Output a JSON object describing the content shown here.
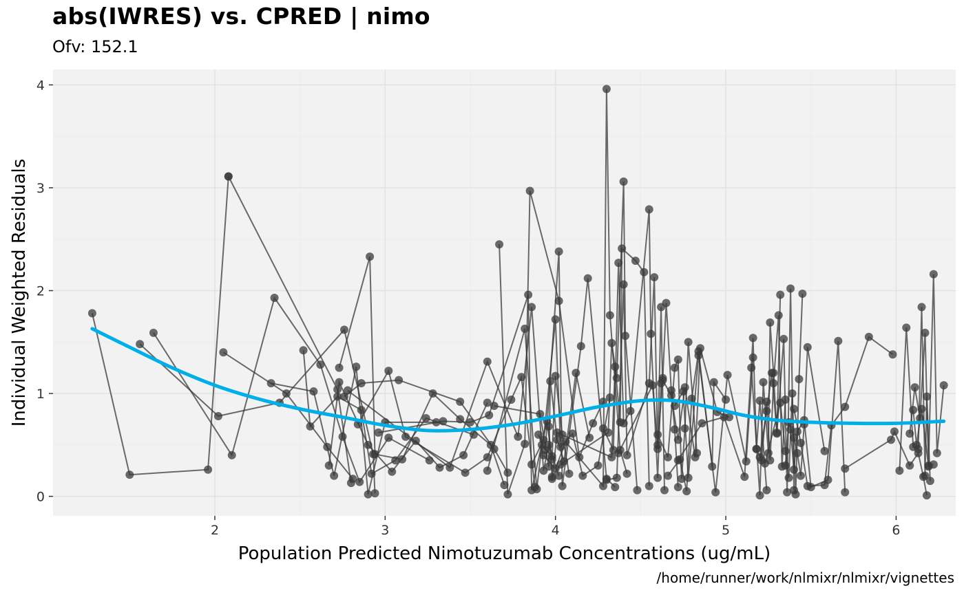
{
  "chart_data": {
    "type": "scatter",
    "title": "abs(IWRES) vs. CPRED | nimo",
    "subtitle": "Ofv: 152.1",
    "caption": "/home/runner/work/nlmixr/nlmixr/vignettes",
    "xlabel": "Population Predicted Nimotuzumab Concentrations (ug/mL)",
    "ylabel": "Individual Weighted Residuals",
    "xlim": [
      1.05,
      6.35
    ],
    "ylim": [
      -0.19,
      4.15
    ],
    "x_ticks": [
      2,
      3,
      4,
      5,
      6
    ],
    "y_ticks": [
      0,
      1,
      2,
      3,
      4
    ],
    "grid": true,
    "colors": {
      "panel": "#f2f2f2",
      "grid_major": "#e2e2e2",
      "grid_minor": "#ececec",
      "points": "#3a3a3a",
      "lines": "#3a3a3a",
      "smooth": "#00aee8"
    },
    "series": [
      {
        "x": [
          1.28,
          1.5,
          1.96,
          2.08
        ],
        "y": [
          1.78,
          0.21,
          0.26,
          3.11
        ]
      },
      {
        "x": [
          2.08,
          2.72,
          2.8
        ],
        "y": [
          3.11,
          1.04,
          0.13
        ]
      },
      {
        "x": [
          1.56,
          2.02,
          2.38,
          2.76,
          2.93,
          2.94
        ],
        "y": [
          1.48,
          0.78,
          0.91,
          1.62,
          0.41,
          0.03
        ]
      },
      {
        "x": [
          1.64,
          2.1,
          2.35,
          2.62,
          2.75,
          2.85,
          3.02,
          3.26
        ],
        "y": [
          1.59,
          0.4,
          1.93,
          1.28,
          0.58,
          0.14,
          0.57,
          0.35
        ]
      },
      {
        "x": [
          2.05,
          2.42,
          2.66,
          2.81
        ],
        "y": [
          1.4,
          1.0,
          0.48,
          0.17
        ]
      },
      {
        "x": [
          2.33,
          2.58,
          2.7,
          2.83,
          2.9,
          3.0,
          3.3
        ],
        "y": [
          1.1,
          1.02,
          0.2,
          1.26,
          0.02,
          0.72,
          0.72
        ]
      },
      {
        "x": [
          2.52,
          2.56,
          2.72,
          2.86,
          2.92,
          3.06,
          3.24,
          3.52
        ],
        "y": [
          1.42,
          0.68,
          0.97,
          0.84,
          0.22,
          0.35,
          0.76,
          0.6
        ]
      },
      {
        "x": [
          2.67,
          2.73,
          2.9,
          3.04,
          3.18,
          3.32,
          3.46,
          3.6
        ],
        "y": [
          0.3,
          1.11,
          0.5,
          0.24,
          0.54,
          0.28,
          0.4,
          0.91
        ]
      },
      {
        "x": [
          2.73,
          2.91,
          2.94,
          3.1,
          3.28,
          3.44,
          3.62,
          3.7
        ],
        "y": [
          1.25,
          2.33,
          0.41,
          0.36,
          1.0,
          0.75,
          0.5,
          0.11
        ]
      },
      {
        "x": [
          2.76,
          2.86,
          3.08,
          3.44,
          3.64,
          3.72
        ],
        "y": [
          0.97,
          1.1,
          1.13,
          0.92,
          0.46,
          0.23
        ]
      },
      {
        "x": [
          2.84,
          3.02,
          3.12,
          3.47,
          3.6,
          3.74,
          3.8,
          3.88
        ],
        "y": [
          0.7,
          1.22,
          0.58,
          0.23,
          0.38,
          0.94,
          1.16,
          0.09
        ]
      },
      {
        "x": [
          2.78,
          3.38,
          3.6,
          3.78,
          3.86,
          3.93,
          3.96,
          4.02
        ],
        "y": [
          1.03,
          0.28,
          1.31,
          0.58,
          1.84,
          0.25,
          0.5,
          0.2
        ]
      },
      {
        "x": [
          2.96,
          3.34,
          3.5,
          3.61,
          3.84,
          3.86,
          3.95,
          3.98
        ],
        "y": [
          0.62,
          0.73,
          0.72,
          0.79,
          1.96,
          0.06,
          0.73,
          0.36
        ]
      },
      {
        "x": [
          3.6,
          3.82,
          3.89,
          3.92,
          3.98,
          4.0,
          4.04,
          4.08
        ],
        "y": [
          0.25,
          1.63,
          0.07,
          0.5,
          0.39,
          1.17,
          0.6,
          0.22
        ]
      },
      {
        "x": [
          3.67,
          3.72,
          3.82,
          3.85,
          4.02,
          4.14,
          4.22,
          4.28
        ],
        "y": [
          2.45,
          0.02,
          0.51,
          2.97,
          1.9,
          0.38,
          0.71,
          0.92
        ]
      },
      {
        "x": [
          3.64,
          3.91,
          3.96,
          3.97,
          4.01,
          4.05,
          4.12,
          4.2
        ],
        "y": [
          0.88,
          0.8,
          0.29,
          1.12,
          0.55,
          0.34,
          1.2,
          0.57
        ]
      },
      {
        "x": [
          3.86,
          3.93,
          4.0,
          4.03,
          4.1,
          4.16,
          4.25,
          4.32
        ],
        "y": [
          0.31,
          0.55,
          1.72,
          0.48,
          0.61,
          0.2,
          0.3,
          0.96
        ]
      },
      {
        "x": [
          3.9,
          3.94,
          4.02,
          4.04,
          4.15,
          4.19,
          4.3,
          4.35
        ],
        "y": [
          0.6,
          0.45,
          2.38,
          0.1,
          1.46,
          2.12,
          0.17,
          0.09
        ]
      },
      {
        "x": [
          3.93,
          4.0,
          4.06,
          4.28,
          4.3,
          4.32,
          4.38,
          4.42
        ],
        "y": [
          0.4,
          0.27,
          0.53,
          0.1,
          3.96,
          1.76,
          0.45,
          0.22
        ]
      },
      {
        "x": [
          3.96,
          3.98,
          4.03,
          4.31,
          4.33,
          4.36,
          4.4,
          4.41,
          4.48
        ],
        "y": [
          0.68,
          0.19,
          0.31,
          0.62,
          1.49,
          1.15,
          3.06,
          1.56,
          0.06
        ]
      },
      {
        "x": [
          3.98,
          4.01,
          4.33,
          4.35,
          4.38,
          4.39,
          4.47,
          4.52,
          4.55
        ],
        "y": [
          0.17,
          0.62,
          0.38,
          1.26,
          0.72,
          2.41,
          2.29,
          2.18,
          0.1
        ]
      },
      {
        "x": [
          4.28,
          4.34,
          4.37,
          4.4,
          4.44,
          4.55,
          4.56,
          4.6,
          4.62
        ],
        "y": [
          0.66,
          0.45,
          2.27,
          0.71,
          0.83,
          2.79,
          1.58,
          0.18,
          1.1
        ]
      },
      {
        "x": [
          4.3,
          4.36,
          4.4,
          4.42,
          4.55,
          4.58,
          4.6,
          4.62,
          4.64
        ],
        "y": [
          0.16,
          0.18,
          2.06,
          0.4,
          1.1,
          2.13,
          0.46,
          1.84,
          0.06
        ]
      },
      {
        "x": [
          4.37,
          4.57,
          4.6,
          4.63,
          4.65,
          4.68,
          4.7,
          4.72
        ],
        "y": [
          0.42,
          1.08,
          0.5,
          1.15,
          1.88,
          1.03,
          0.65,
          0.09
        ]
      },
      {
        "x": [
          4.6,
          4.66,
          4.7,
          4.72,
          4.74,
          4.76,
          4.78,
          4.83
        ],
        "y": [
          0.6,
          0.38,
          1.25,
          1.33,
          0.17,
          0.66,
          1.5,
          0.42
        ]
      },
      {
        "x": [
          4.63,
          4.68,
          4.72,
          4.76,
          4.82,
          4.85,
          4.95,
          5.02
        ],
        "y": [
          1.13,
          0.98,
          0.55,
          1.06,
          0.38,
          1.44,
          0.82,
          0.77
        ]
      },
      {
        "x": [
          4.66,
          4.73,
          4.77,
          4.8,
          4.84,
          4.92,
          4.93,
          5.0
        ],
        "y": [
          0.2,
          0.36,
          0.05,
          0.95,
          1.41,
          0.29,
          1.11,
          0.94
        ]
      },
      {
        "x": [
          4.7,
          4.75,
          4.78,
          4.84,
          4.94,
          5.01,
          5.12,
          5.16
        ],
        "y": [
          0.88,
          1.02,
          0.18,
          1.37,
          0.04,
          1.18,
          0.34,
          1.35
        ]
      },
      {
        "x": [
          4.72,
          4.86,
          4.99,
          5.11,
          5.16,
          5.18,
          5.2,
          5.24
        ],
        "y": [
          0.35,
          0.71,
          0.77,
          0.19,
          1.54,
          0.46,
          0.93,
          0.06
        ]
      },
      {
        "x": [
          5.15,
          5.2,
          5.22,
          5.25,
          5.26,
          5.28,
          5.3,
          5.32
        ],
        "y": [
          1.25,
          0.01,
          1.11,
          0.42,
          1.69,
          1.2,
          0.61,
          1.96
        ]
      },
      {
        "x": [
          5.18,
          5.21,
          5.24,
          5.26,
          5.28,
          5.31,
          5.33,
          5.35
        ],
        "y": [
          0.46,
          0.35,
          0.92,
          0.35,
          1.1,
          1.76,
          0.29,
          0.94
        ]
      },
      {
        "x": [
          5.2,
          5.24,
          5.27,
          5.3,
          5.34,
          5.36,
          5.38,
          5.4
        ],
        "y": [
          0.38,
          0.83,
          1.2,
          0.62,
          1.53,
          0.04,
          2.02,
          0.06
        ]
      },
      {
        "x": [
          5.23,
          5.32,
          5.35,
          5.37,
          5.39,
          5.41,
          5.43,
          5.45
        ],
        "y": [
          0.32,
          0.91,
          0.44,
          0.18,
          1.0,
          0.02,
          1.14,
          1.97
        ]
      },
      {
        "x": [
          5.35,
          5.37,
          5.4,
          5.42,
          5.44,
          5.46,
          5.48,
          5.58
        ],
        "y": [
          0.3,
          0.72,
          0.57,
          0.42,
          0.2,
          0.7,
          1.45,
          0.44
        ]
      },
      {
        "x": [
          5.38,
          5.4,
          5.42,
          5.46,
          5.5,
          5.6,
          5.66,
          5.7
        ],
        "y": [
          0.65,
          0.26,
          0.63,
          0.74,
          0.09,
          0.16,
          1.51,
          0.04
        ]
      },
      {
        "x": [
          5.4,
          5.44,
          5.48,
          5.58,
          5.62,
          5.7,
          5.84,
          5.98
        ],
        "y": [
          0.85,
          0.52,
          0.1,
          0.11,
          0.69,
          0.87,
          1.55,
          1.38
        ]
      },
      {
        "x": [
          5.7,
          5.97,
          5.99,
          6.08,
          6.13,
          6.16,
          6.18
        ],
        "y": [
          0.27,
          0.55,
          0.63,
          0.3,
          0.42,
          0.19,
          0.01
        ]
      },
      {
        "x": [
          6.02,
          6.06,
          6.1,
          6.13,
          6.15,
          6.17,
          6.18,
          6.2
        ],
        "y": [
          0.25,
          1.64,
          0.48,
          0.46,
          1.84,
          0.2,
          0.97,
          0.15
        ]
      },
      {
        "x": [
          6.08,
          6.11,
          6.14,
          6.17,
          6.19,
          6.22,
          6.24,
          6.28
        ],
        "y": [
          0.61,
          1.06,
          0.76,
          1.59,
          0.29,
          2.16,
          0.42,
          1.08
        ]
      },
      {
        "x": [
          6.1,
          6.12,
          6.15,
          6.19,
          6.22
        ],
        "y": [
          0.84,
          0.5,
          0.85,
          0.3,
          0.31
        ]
      }
    ],
    "smooth": {
      "x": [
        1.28,
        1.5,
        1.75,
        2.0,
        2.25,
        2.5,
        2.75,
        3.0,
        3.25,
        3.5,
        3.75,
        4.0,
        4.25,
        4.5,
        4.7,
        4.9,
        5.1,
        5.3,
        5.5,
        5.75,
        6.0,
        6.28
      ],
      "y": [
        1.63,
        1.45,
        1.25,
        1.08,
        0.95,
        0.85,
        0.77,
        0.69,
        0.64,
        0.65,
        0.7,
        0.78,
        0.87,
        0.93,
        0.93,
        0.87,
        0.79,
        0.74,
        0.72,
        0.71,
        0.71,
        0.73
      ]
    }
  }
}
